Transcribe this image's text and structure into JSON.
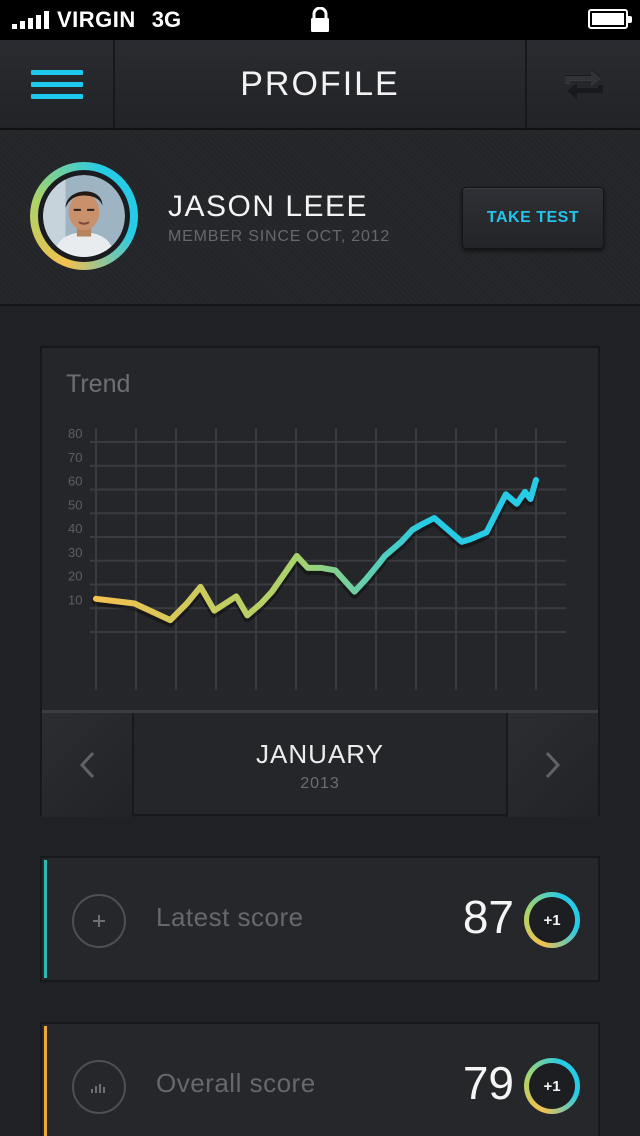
{
  "status_bar": {
    "carrier": "VIRGIN",
    "network": "3G"
  },
  "nav": {
    "title": "PROFILE",
    "menu_icon": "hamburger-menu-icon",
    "sync_icon": "sync-arrows-icon",
    "accent": "#1ec9ee"
  },
  "profile": {
    "name": "JASON LEEE",
    "member_since": "MEMBER SINCE OCT, 2012",
    "take_test_label": "TAKE TEST"
  },
  "trend": {
    "title": "Trend",
    "month": "JANUARY",
    "year": "2013",
    "prev_icon": "chevron-left-icon",
    "next_icon": "chevron-right-icon"
  },
  "chart_data": {
    "type": "line",
    "title": "Trend",
    "ylim": [
      0,
      80
    ],
    "y_ticks": [
      "10",
      "20",
      "30",
      "40",
      "50",
      "60",
      "70",
      "80"
    ],
    "grid": true,
    "gradient_colors": [
      "#f3c14f",
      "#a9d36a",
      "#27cbe6"
    ],
    "series": [
      {
        "x": [
          0,
          1.4,
          2.7,
          3.3,
          3.8,
          4.3,
          5.1,
          5.5,
          6.0,
          6.4,
          7.3,
          7.7,
          8.2,
          8.7,
          9.4,
          9.8,
          10.3,
          10.5,
          11.1,
          11.5,
          11.8,
          12.3,
          13.3,
          13.6,
          14.2,
          14.9,
          15.3,
          15.6,
          15.8,
          16.0
        ],
        "y": [
          14,
          12,
          5,
          12,
          19,
          9,
          15,
          7,
          12,
          17,
          32,
          27,
          27,
          26,
          17,
          22,
          29,
          32,
          38,
          43,
          45,
          48,
          38,
          39,
          42,
          58,
          54,
          59,
          56,
          64
        ]
      }
    ]
  },
  "scores": [
    {
      "label": "Latest score",
      "value": "87",
      "delta": "+1",
      "icon": "plus-icon",
      "accent": "#2fb9b0"
    },
    {
      "label": "Overall score",
      "value": "79",
      "delta": "+1",
      "icon": "bar-chart-icon",
      "accent": "#e8a93a"
    }
  ]
}
